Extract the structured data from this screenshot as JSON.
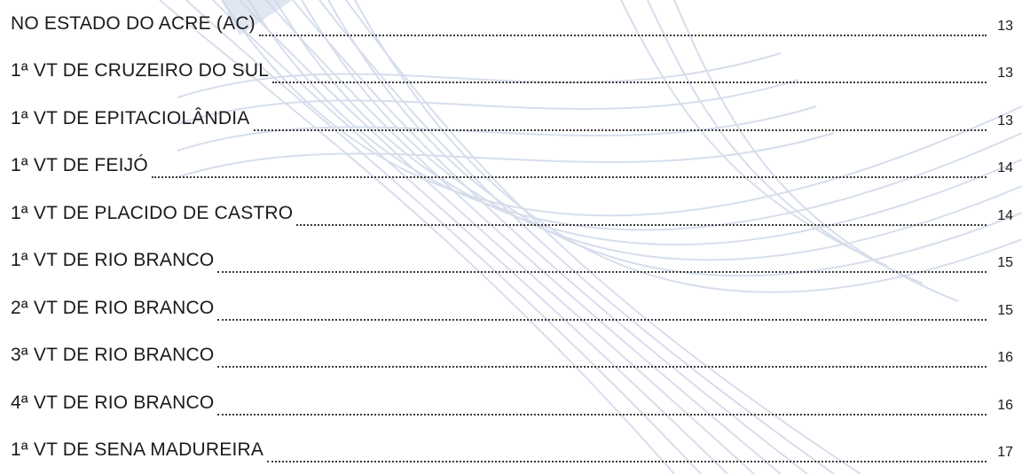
{
  "toc": {
    "entries": [
      {
        "label": "NO ESTADO DO ACRE (AC)",
        "page": "13"
      },
      {
        "label": "1ª VT DE CRUZEIRO DO SUL",
        "page": "13"
      },
      {
        "label": "1ª VT DE EPITACIOLÂNDIA",
        "page": "13"
      },
      {
        "label": "1ª VT DE FEIJÓ",
        "page": "14"
      },
      {
        "label": "1ª VT DE PLACIDO DE CASTRO",
        "page": "14"
      },
      {
        "label": "1ª VT DE RIO BRANCO",
        "page": "15"
      },
      {
        "label": "2ª VT DE RIO BRANCO",
        "page": "15"
      },
      {
        "label": "3ª VT DE RIO BRANCO",
        "page": "16"
      },
      {
        "label": "4ª VT DE RIO BRANCO",
        "page": "16"
      },
      {
        "label": "1ª VT DE SENA MADUREIRA",
        "page": "17"
      }
    ]
  },
  "colors": {
    "text": "#1a1a1a",
    "watermark": "#c9d3e6"
  }
}
